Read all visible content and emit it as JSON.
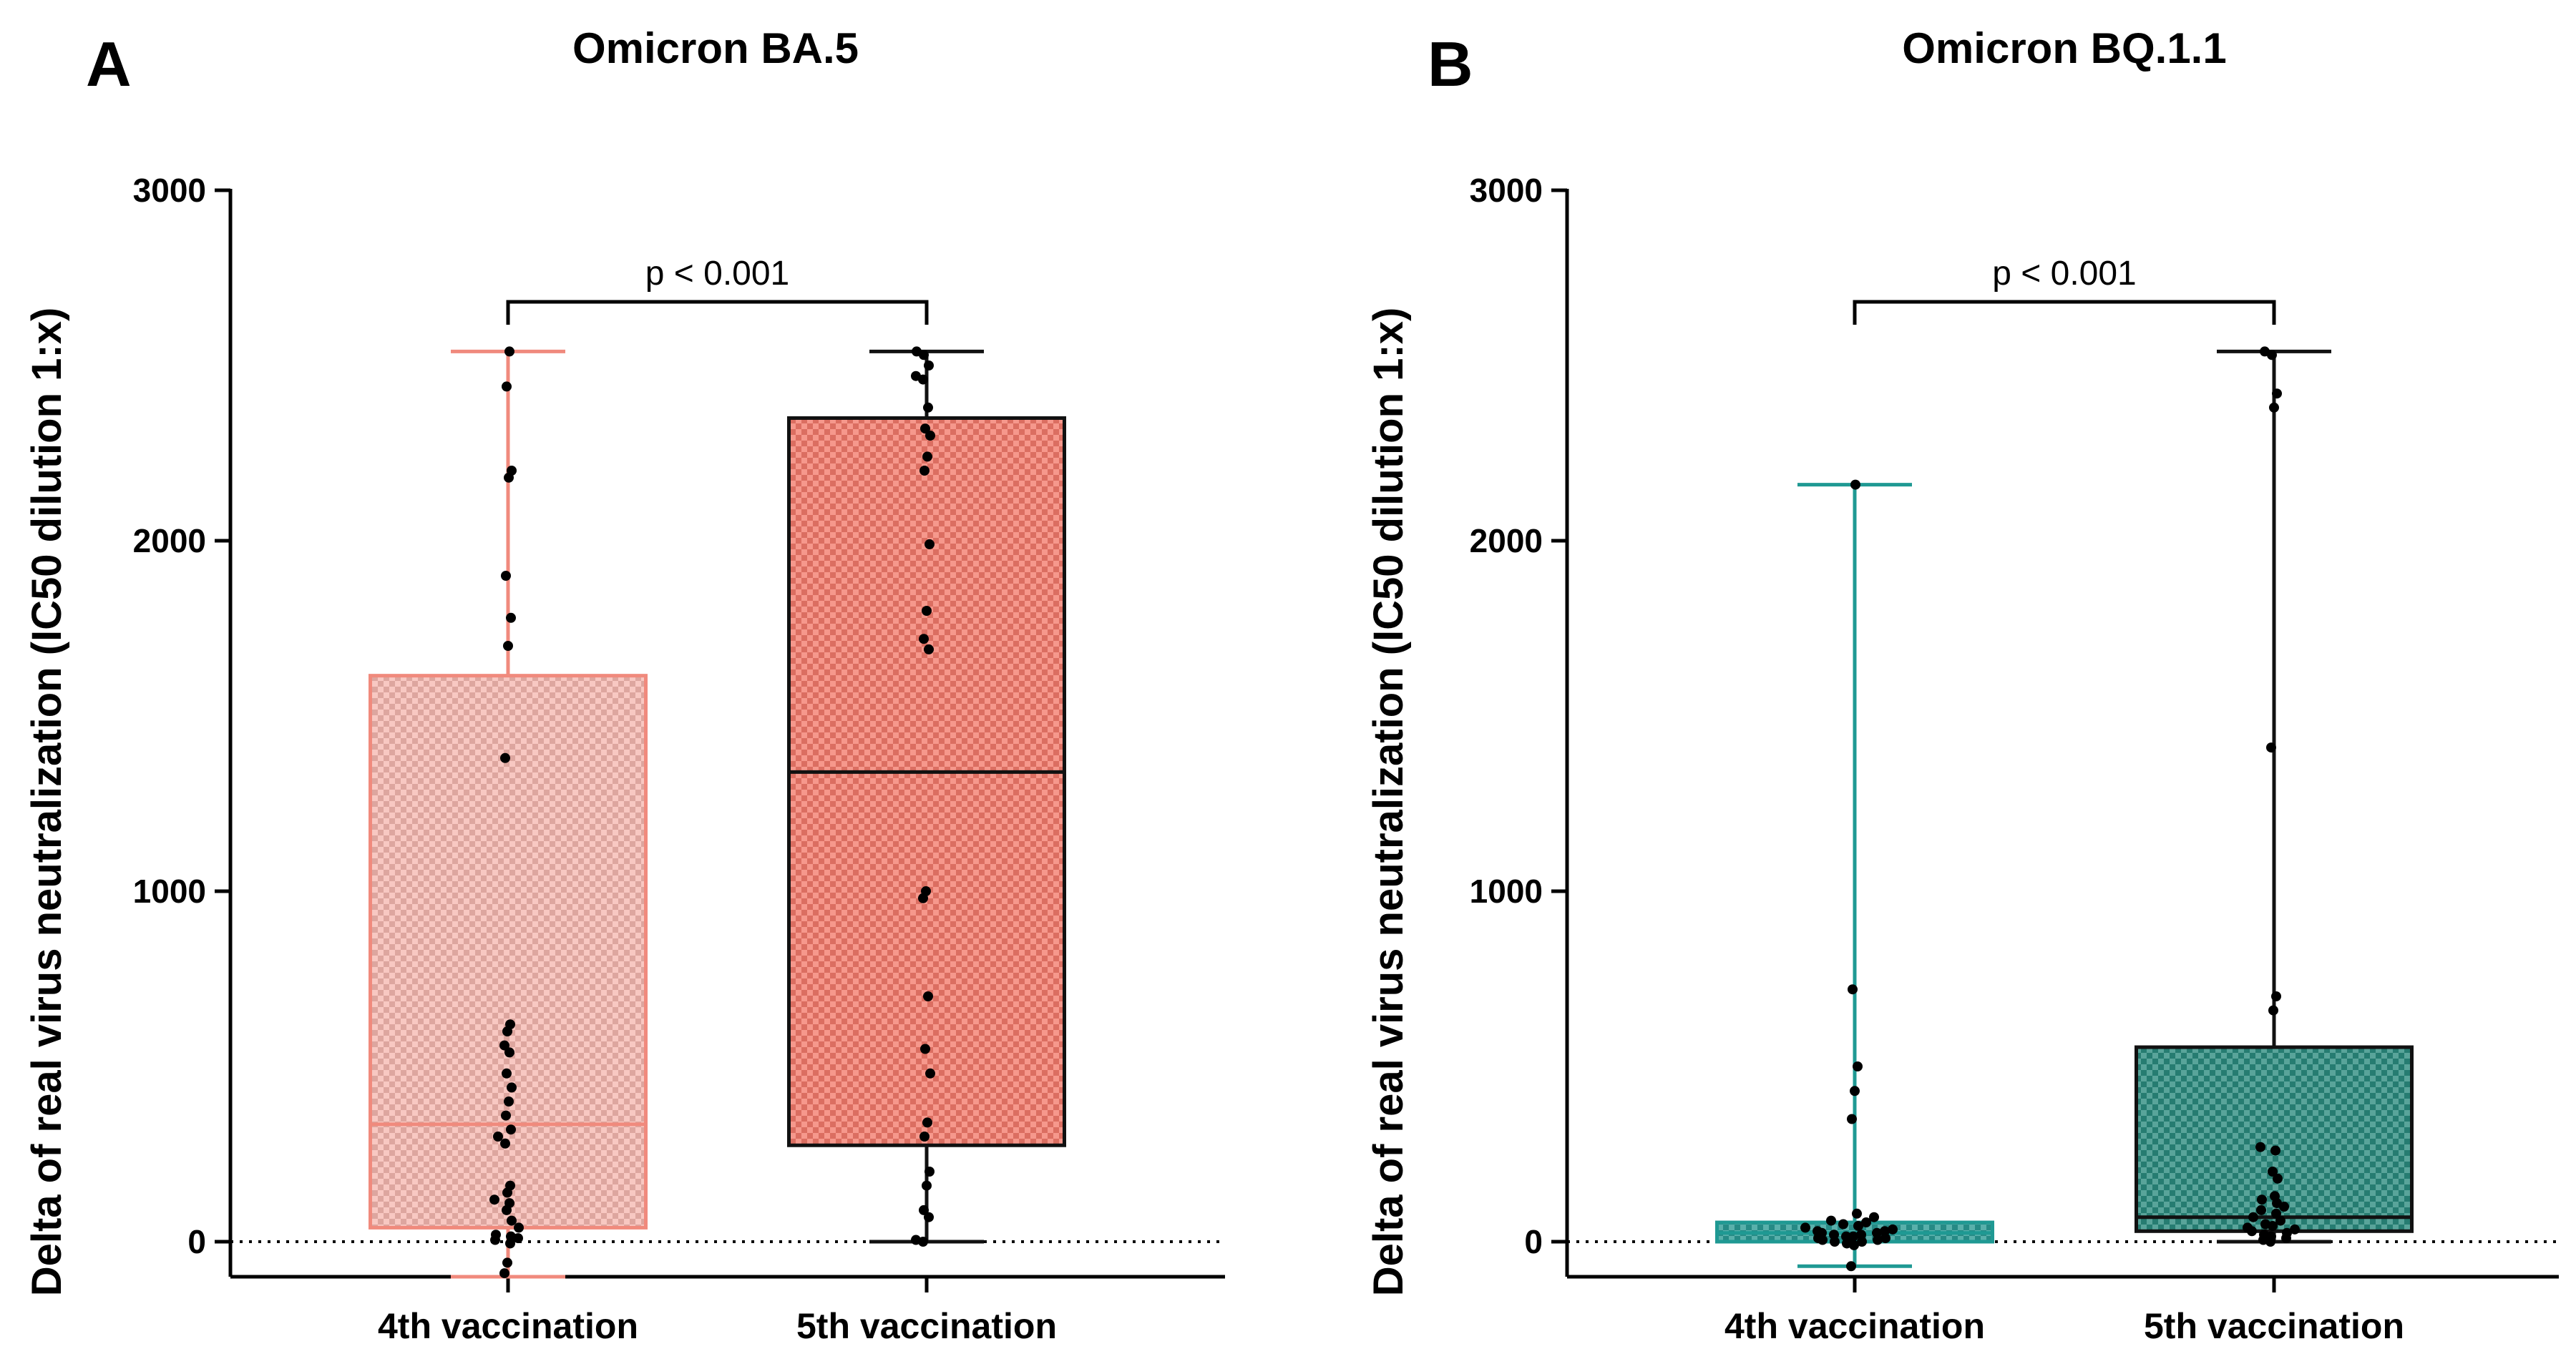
{
  "chart_data": [
    {
      "type": "box",
      "panel": "A",
      "title": "Omicron BA.5",
      "ylabel": "Delta of real virus neutralization (IC50  dilution 1:x)",
      "ylim": [
        -100,
        3000
      ],
      "yticks": [
        0,
        1000,
        2000,
        3000
      ],
      "reference_line": 0,
      "categories": [
        "4th vaccination",
        "5th vaccination"
      ],
      "annotation": "p < 0.001",
      "series": [
        {
          "name": "4th vaccination",
          "color": "#f08a7d",
          "fill": "#f6b9b1",
          "edge": "#f08a7d",
          "median_color": "#f08a7d",
          "whisker_min": -100,
          "q1": 40,
          "median": 335,
          "q3": 1615,
          "whisker_max": 2540,
          "points": [
            -90,
            -60,
            -5,
            5,
            10,
            15,
            20,
            40,
            60,
            90,
            110,
            120,
            140,
            160,
            280,
            300,
            320,
            360,
            400,
            440,
            480,
            540,
            560,
            600,
            620,
            1380,
            1700,
            1780,
            1900,
            2180,
            2200,
            2440,
            2540
          ]
        },
        {
          "name": "5th vaccination",
          "color": "#f26b5b",
          "fill": "#f47b6c",
          "edge": "#111111",
          "median_color": "#111111",
          "whisker_min": 0,
          "q1": 275,
          "median": 1340,
          "q3": 2350,
          "whisker_max": 2540,
          "points": [
            0,
            5,
            70,
            90,
            160,
            200,
            300,
            340,
            480,
            550,
            700,
            980,
            1000,
            1690,
            1720,
            1800,
            1990,
            2200,
            2240,
            2300,
            2320,
            2380,
            2460,
            2470,
            2500,
            2530,
            2540
          ]
        }
      ]
    },
    {
      "type": "box",
      "panel": "B",
      "title": "Omicron BQ.1.1",
      "ylabel": "Delta of real virus neutralization (IC50  dilution 1:x)",
      "ylim": [
        -100,
        3000
      ],
      "yticks": [
        0,
        1000,
        2000,
        3000
      ],
      "reference_line": 0,
      "categories": [
        "4th vaccination",
        "5th vaccination"
      ],
      "annotation": "p < 0.001",
      "series": [
        {
          "name": "4th vaccination",
          "color": "#1f9993",
          "fill": "#2a9a94",
          "edge": "#1f9993",
          "median_color": "#1f9993",
          "whisker_min": -70,
          "q1": 0,
          "median": 25,
          "q3": 55,
          "whisker_max": 2160,
          "points": [
            -70,
            -10,
            -5,
            0,
            0,
            5,
            5,
            10,
            10,
            15,
            15,
            20,
            20,
            25,
            25,
            30,
            30,
            35,
            40,
            45,
            50,
            55,
            60,
            70,
            80,
            350,
            430,
            500,
            720,
            2160
          ]
        },
        {
          "name": "5th vaccination",
          "color": "#1d7a70",
          "fill": "#2a8a7e",
          "edge": "#111111",
          "median_color": "#111111",
          "whisker_min": 0,
          "q1": 30,
          "median": 70,
          "q3": 555,
          "whisker_max": 2540,
          "points": [
            0,
            5,
            10,
            15,
            20,
            25,
            30,
            35,
            40,
            45,
            50,
            60,
            70,
            80,
            90,
            100,
            110,
            120,
            130,
            180,
            200,
            260,
            270,
            660,
            700,
            1410,
            2380,
            2420,
            2530,
            2540
          ]
        }
      ]
    }
  ]
}
